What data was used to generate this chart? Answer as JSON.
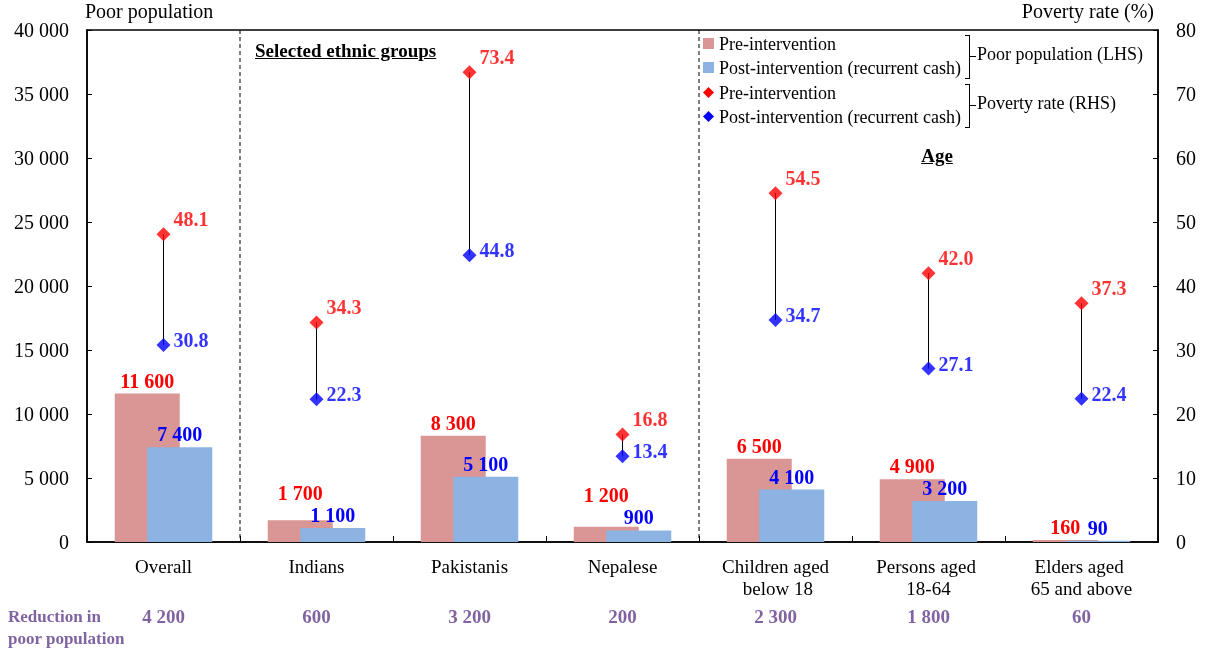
{
  "chart_data": {
    "type": "bar",
    "categories": [
      "Overall",
      "Indians",
      "Pakistanis",
      "Nepalese",
      "Children aged below 18",
      "Persons aged 18-64",
      "Elders aged 65 and above"
    ],
    "ylabel": "Poor population",
    "y2label": "Poverty rate (%)",
    "ylim": [
      0,
      40000
    ],
    "yticks": [
      0,
      {
        "value": 5000,
        "label": "5 000"
      },
      {
        "value": 10000,
        "label": "10 000"
      },
      {
        "value": 15000,
        "label": "15 000"
      },
      {
        "value": 20000,
        "label": "20 000"
      },
      {
        "value": 25000,
        "label": "25 000"
      },
      {
        "value": 30000,
        "label": "30 000"
      },
      {
        "value": 35000,
        "label": "35 000"
      },
      {
        "value": 40000,
        "label": "40 000"
      }
    ],
    "y2lim": [
      0,
      80
    ],
    "y2ticks": [
      0,
      10,
      20,
      30,
      40,
      50,
      60,
      70,
      80
    ],
    "series": [
      {
        "name": "Pre-intervention",
        "color": "#d99694",
        "values": [
          11600,
          1700,
          8300,
          1200,
          6500,
          4900,
          160
        ],
        "value_labels": [
          "11 600",
          "1 700",
          "8 300",
          "1 200",
          "6 500",
          "4 900",
          "160"
        ]
      },
      {
        "name": "Post-intervention (recurrent cash)",
        "color": "#8db3e2",
        "values": [
          7400,
          1100,
          5100,
          900,
          4100,
          3200,
          90
        ],
        "value_labels": [
          "7 400",
          "1 100",
          "5 100",
          "900",
          "4 100",
          "3 200",
          "90"
        ]
      },
      {
        "name": "Pre-intervention",
        "type": "scatter",
        "axis": "y2",
        "color": "#ff0000",
        "values": [
          48.1,
          34.3,
          73.4,
          16.8,
          54.5,
          42.0,
          37.3
        ],
        "value_labels": [
          "48.1",
          "34.3",
          "73.4",
          "16.8",
          "54.5",
          "42.0",
          "37.3"
        ]
      },
      {
        "name": "Post-intervention (recurrent cash)",
        "type": "scatter",
        "axis": "y2",
        "color": "#0000ff",
        "values": [
          30.8,
          22.3,
          44.8,
          13.4,
          34.7,
          27.1,
          22.4
        ],
        "value_labels": [
          "30.8",
          "22.3",
          "44.8",
          "13.4",
          "34.7",
          "27.1",
          "22.4"
        ]
      }
    ],
    "annotations": [
      "Selected ethnic groups",
      "Age",
      "Poor population (LHS)",
      "Poverty rate (RHS)",
      "Reduction in poor population",
      "4 200",
      "600",
      "3 200",
      "200",
      "2 300",
      "1 800",
      "60"
    ],
    "legend": "top right",
    "marker": "diamond"
  }
}
